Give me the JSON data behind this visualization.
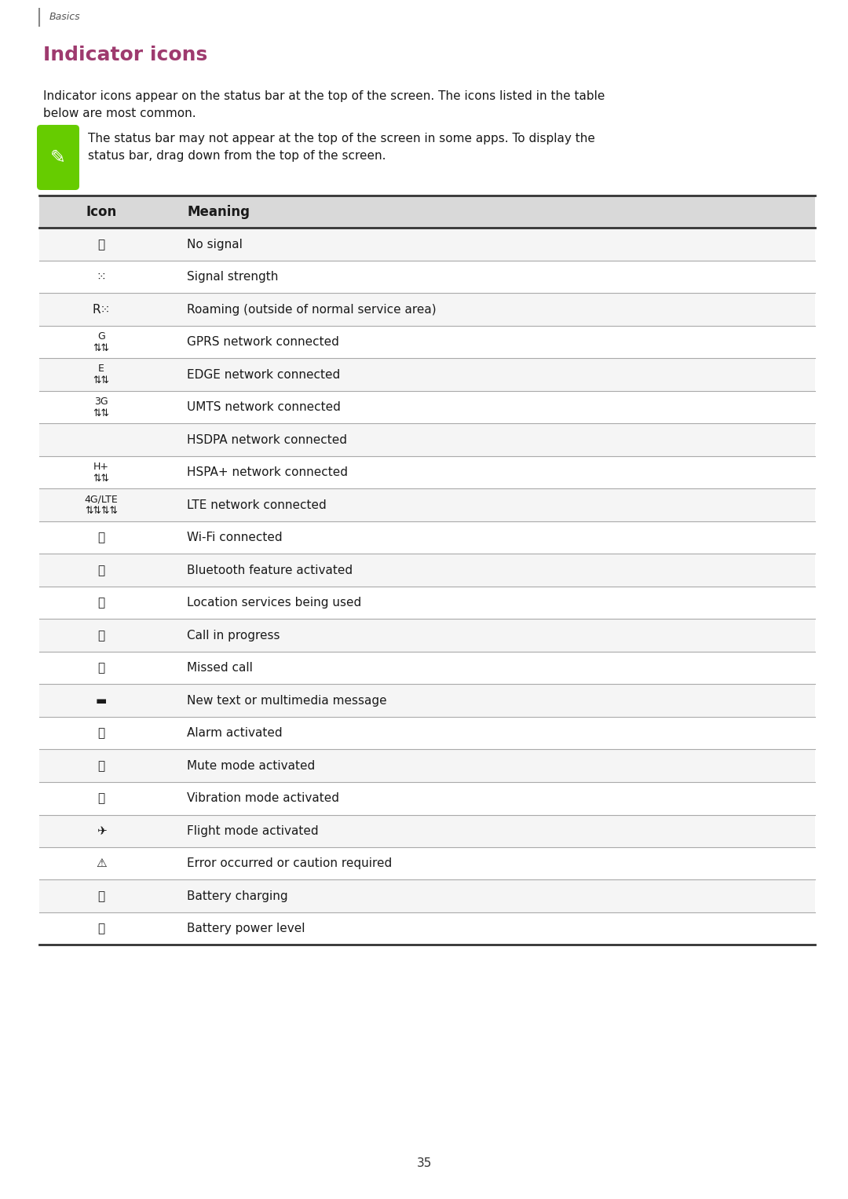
{
  "page_bg": "#ffffff",
  "page_num": "35",
  "section_label": "Basics",
  "title": "Indicator icons",
  "title_color": "#9e3a6e",
  "body_line1": "Indicator icons appear on the status bar at the top of the screen. The icons listed in the table",
  "body_line2": "below are most common.",
  "note_line1": "The status bar may not appear at the top of the screen in some apps. To display the",
  "note_line2": "status bar, drag down from the top of the screen.",
  "note_icon_color": "#66cc00",
  "header_bg": "#d9d9d9",
  "row_bg_alt": "#f5f5f5",
  "row_bg_main": "#ffffff",
  "divider_color_light": "#aaaaaa",
  "divider_color_dark": "#333333",
  "text_color": "#1a1a1a",
  "font_size_body": 11,
  "font_size_table": 11,
  "font_size_title": 18,
  "font_size_header": 12,
  "meanings": [
    "No signal",
    "Signal strength",
    "Roaming (outside of normal service area)",
    "GPRS network connected",
    "EDGE network connected",
    "UMTS network connected",
    "HSDPA network connected",
    "HSPA+ network connected",
    "LTE network connected",
    "Wi-Fi connected",
    "Bluetooth feature activated",
    "Location services being used",
    "Call in progress",
    "Missed call",
    "New text or multimedia message",
    "Alarm activated",
    "Mute mode activated",
    "Vibration mode activated",
    "Flight mode activated",
    "Error occurred or caution required",
    "Battery charging",
    "Battery power level"
  ]
}
